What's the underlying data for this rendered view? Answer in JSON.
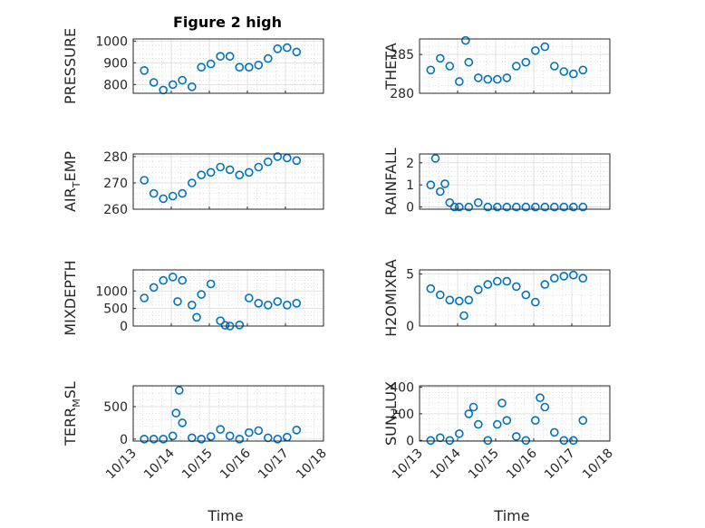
{
  "figure": {
    "title": "Figure 2 high"
  },
  "colors": {
    "series": "#0072BD",
    "axis": "#262626",
    "background": "#ffffff"
  },
  "x_axis": {
    "label": "Time",
    "ticks": [
      "10/13",
      "10/14",
      "10/15",
      "10/16",
      "10/17",
      "10/18"
    ],
    "range_days": [
      13,
      18
    ]
  },
  "chart_data": [
    {
      "type": "scatter",
      "title": "Figure 2 high",
      "ylabel": "PRESSURE",
      "ylabel_sub": "",
      "ylabel_tail": "",
      "ylim": [
        760,
        1010
      ],
      "yticks": [
        800,
        900,
        1000
      ],
      "grid": true,
      "x": [
        "10/13 07:00",
        "10/13 13:00",
        "10/13 19:00",
        "10/14 01:00",
        "10/14 07:00",
        "10/14 13:00",
        "10/14 19:00",
        "10/15 01:00",
        "10/15 07:00",
        "10/15 13:00",
        "10/15 19:00",
        "10/16 01:00",
        "10/16 07:00",
        "10/16 13:00",
        "10/16 19:00",
        "10/17 01:00",
        "10/17 07:00"
      ],
      "y": [
        865,
        810,
        775,
        800,
        820,
        790,
        880,
        895,
        930,
        930,
        880,
        880,
        890,
        920,
        965,
        970,
        950
      ]
    },
    {
      "type": "scatter",
      "title": "",
      "ylabel": "THETA",
      "ylabel_sub": "",
      "ylabel_tail": "",
      "ylim": [
        280,
        287
      ],
      "yticks": [
        280,
        285
      ],
      "grid": true,
      "x": [
        "10/13 07:00",
        "10/13 13:00",
        "10/13 19:00",
        "10/14 01:00",
        "10/14 05:00",
        "10/14 07:00",
        "10/14 13:00",
        "10/14 19:00",
        "10/15 01:00",
        "10/15 07:00",
        "10/15 13:00",
        "10/15 19:00",
        "10/16 01:00",
        "10/16 07:00",
        "10/16 13:00",
        "10/16 19:00",
        "10/17 01:00",
        "10/17 07:00"
      ],
      "y": [
        283,
        284.5,
        283.5,
        281.5,
        286.8,
        284,
        282,
        281.8,
        281.8,
        282,
        283.5,
        284,
        285.5,
        286,
        283.5,
        282.8,
        282.5,
        283
      ]
    },
    {
      "type": "scatter",
      "title": "",
      "ylabel": "AIR",
      "ylabel_sub": "T",
      "ylabel_tail": "EMP",
      "ylim": [
        260,
        281
      ],
      "yticks": [
        260,
        270,
        280
      ],
      "grid": true,
      "x": [
        "10/13 07:00",
        "10/13 13:00",
        "10/13 19:00",
        "10/14 01:00",
        "10/14 07:00",
        "10/14 13:00",
        "10/14 19:00",
        "10/15 01:00",
        "10/15 07:00",
        "10/15 13:00",
        "10/15 19:00",
        "10/16 01:00",
        "10/16 07:00",
        "10/16 13:00",
        "10/16 19:00",
        "10/17 01:00",
        "10/17 07:00"
      ],
      "y": [
        271,
        266,
        264,
        265,
        266,
        270,
        273,
        274,
        276,
        275,
        273,
        274,
        276,
        278,
        280,
        279.5,
        278.5
      ]
    },
    {
      "type": "scatter",
      "title": "",
      "ylabel": "RAINFALL",
      "ylabel_sub": "",
      "ylabel_tail": "",
      "ylim": [
        -0.1,
        2.4
      ],
      "yticks": [
        0,
        1,
        2
      ],
      "grid": true,
      "x": [
        "10/13 07:00",
        "10/13 10:00",
        "10/13 13:00",
        "10/13 16:00",
        "10/13 19:00",
        "10/13 22:00",
        "10/14 01:00",
        "10/14 07:00",
        "10/14 13:00",
        "10/14 19:00",
        "10/15 01:00",
        "10/15 07:00",
        "10/15 13:00",
        "10/15 19:00",
        "10/16 01:00",
        "10/16 07:00",
        "10/16 13:00",
        "10/16 19:00",
        "10/17 01:00",
        "10/17 07:00"
      ],
      "y": [
        1.0,
        2.2,
        0.7,
        1.05,
        0.2,
        0,
        0,
        0,
        0.2,
        0,
        0,
        0,
        0,
        0,
        0,
        0,
        0,
        0,
        0,
        0
      ]
    },
    {
      "type": "scatter",
      "title": "",
      "ylabel": "MIXDEPTH",
      "ylabel_sub": "",
      "ylabel_tail": "",
      "ylim": [
        0,
        1600
      ],
      "yticks": [
        0,
        500,
        1000
      ],
      "grid": true,
      "x": [
        "10/13 07:00",
        "10/13 13:00",
        "10/13 19:00",
        "10/14 01:00",
        "10/14 04:00",
        "10/14 07:00",
        "10/14 13:00",
        "10/14 16:00",
        "10/14 19:00",
        "10/15 01:00",
        "10/15 07:00",
        "10/15 10:00",
        "10/15 13:00",
        "10/15 19:00",
        "10/16 01:00",
        "10/16 07:00",
        "10/16 13:00",
        "10/16 19:00",
        "10/17 01:00",
        "10/17 07:00"
      ],
      "y": [
        800,
        1100,
        1300,
        1400,
        700,
        1300,
        600,
        250,
        900,
        1200,
        150,
        20,
        0,
        30,
        800,
        650,
        600,
        700,
        600,
        650
      ]
    },
    {
      "type": "scatter",
      "title": "",
      "ylabel": "H2OMIXRA",
      "ylabel_sub": "",
      "ylabel_tail": "",
      "ylim": [
        0,
        5.4
      ],
      "yticks": [
        0,
        5
      ],
      "grid": true,
      "x": [
        "10/13 07:00",
        "10/13 13:00",
        "10/13 19:00",
        "10/14 01:00",
        "10/14 04:00",
        "10/14 07:00",
        "10/14 13:00",
        "10/14 19:00",
        "10/15 01:00",
        "10/15 07:00",
        "10/15 13:00",
        "10/15 19:00",
        "10/16 01:00",
        "10/16 07:00",
        "10/16 13:00",
        "10/16 19:00",
        "10/17 01:00",
        "10/17 07:00"
      ],
      "y": [
        3.6,
        3.0,
        2.5,
        2.4,
        1.0,
        2.5,
        3.5,
        4.0,
        4.3,
        4.3,
        3.8,
        3.0,
        2.3,
        4.0,
        4.6,
        4.8,
        4.9,
        4.6
      ]
    },
    {
      "type": "scatter",
      "title": "",
      "ylabel": "TERR",
      "ylabel_sub": "M",
      "ylabel_tail": "SL",
      "ylim": [
        -30,
        820
      ],
      "yticks": [
        0,
        500
      ],
      "grid": true,
      "x": [
        "10/13 07:00",
        "10/13 13:00",
        "10/13 19:00",
        "10/14 01:00",
        "10/14 03:00",
        "10/14 05:00",
        "10/14 07:00",
        "10/14 13:00",
        "10/14 19:00",
        "10/15 01:00",
        "10/15 07:00",
        "10/15 13:00",
        "10/15 19:00",
        "10/16 01:00",
        "10/16 07:00",
        "10/16 13:00",
        "10/16 19:00",
        "10/17 01:00",
        "10/17 07:00"
      ],
      "y": [
        0,
        0,
        0,
        50,
        400,
        750,
        250,
        20,
        0,
        40,
        150,
        50,
        0,
        100,
        130,
        20,
        0,
        30,
        140
      ]
    },
    {
      "type": "scatter",
      "title": "",
      "ylabel": "SUN",
      "ylabel_sub": "F",
      "ylabel_tail": "LUX",
      "ylim": [
        -5,
        410
      ],
      "yticks": [
        0,
        200,
        400
      ],
      "grid": true,
      "x": [
        "10/13 07:00",
        "10/13 13:00",
        "10/13 19:00",
        "10/14 01:00",
        "10/14 07:00",
        "10/14 10:00",
        "10/14 13:00",
        "10/14 19:00",
        "10/15 01:00",
        "10/15 04:00",
        "10/15 07:00",
        "10/15 13:00",
        "10/15 19:00",
        "10/16 01:00",
        "10/16 04:00",
        "10/16 07:00",
        "10/16 13:00",
        "10/16 19:00",
        "10/17 01:00",
        "10/17 07:00"
      ],
      "y": [
        0,
        20,
        0,
        50,
        200,
        250,
        120,
        0,
        120,
        280,
        150,
        30,
        0,
        150,
        320,
        250,
        60,
        0,
        0,
        150
      ]
    }
  ]
}
